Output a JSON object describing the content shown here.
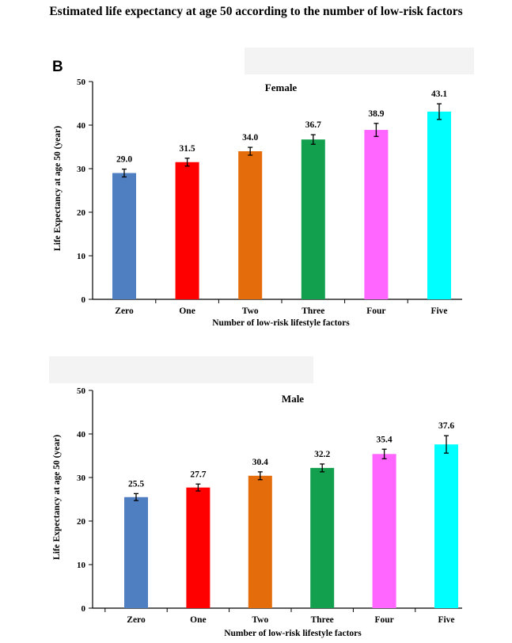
{
  "page_title": "Estimated life expectancy at age 50 according to the number of low-risk factors",
  "panel_letter": "B",
  "colors": [
    "#4f7fc0",
    "#ff0000",
    "#e46c0a",
    "#12a04f",
    "#ff66ff",
    "#00ffff"
  ],
  "chart_data": [
    {
      "type": "bar",
      "title": "Female",
      "categories": [
        "Zero",
        "One",
        "Two",
        "Three",
        "Four",
        "Five"
      ],
      "values": [
        29.0,
        31.5,
        34.0,
        36.7,
        38.9,
        43.1
      ],
      "value_labels": [
        "29.0",
        "31.5",
        "34.0",
        "36.7",
        "38.9",
        "43.1"
      ],
      "error": [
        0.9,
        0.9,
        0.9,
        1.1,
        1.5,
        1.8
      ],
      "xlabel": "Number of low-risk lifestyle factors",
      "ylabel": "Life Expectancy at age 50 (year)",
      "ylim": [
        0,
        50
      ],
      "yticks": [
        "0",
        "10",
        "20",
        "30",
        "40",
        "50"
      ],
      "grid": false,
      "legend": "none"
    },
    {
      "type": "bar",
      "title": "Male",
      "categories": [
        "Zero",
        "One",
        "Two",
        "Three",
        "Four",
        "Five"
      ],
      "values": [
        25.5,
        27.7,
        30.4,
        32.2,
        35.4,
        37.6
      ],
      "value_labels": [
        "25.5",
        "27.7",
        "30.4",
        "32.2",
        "35.4",
        "37.6"
      ],
      "error": [
        0.8,
        0.8,
        0.9,
        0.9,
        1.1,
        2.0
      ],
      "xlabel": "Number  of low-risk lifestyle factors",
      "ylabel": "Life Expectancy at age 50 (year)",
      "ylim": [
        0,
        50
      ],
      "yticks": [
        "0",
        "10",
        "20",
        "30",
        "40",
        "50"
      ],
      "grid": false,
      "legend": "none"
    }
  ]
}
